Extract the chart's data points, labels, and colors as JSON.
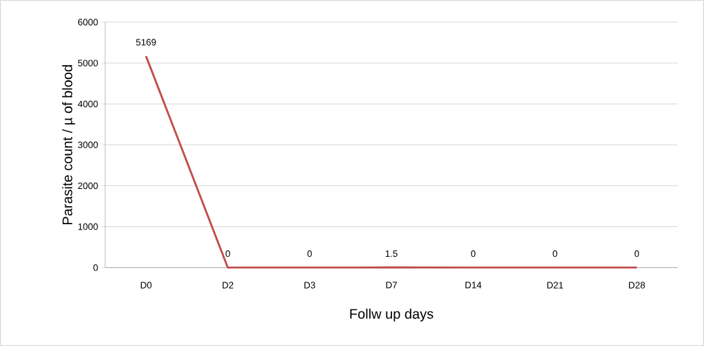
{
  "chart_data": {
    "type": "line",
    "xlabel": "Follw up days",
    "ylabel": "Parasite count / µ of blood",
    "categories": [
      "D0",
      "D2",
      "D3",
      "D7",
      "D14",
      "D21",
      "D28"
    ],
    "values": [
      5169,
      0,
      0,
      1.5,
      0,
      0,
      0
    ],
    "color": "#c0504d",
    "ylim": [
      0,
      6000
    ],
    "yticks": [
      0,
      1000,
      2000,
      3000,
      4000,
      5000,
      6000
    ],
    "grid": "y",
    "data_labels": true,
    "marker": "none",
    "line_style": "solid"
  }
}
